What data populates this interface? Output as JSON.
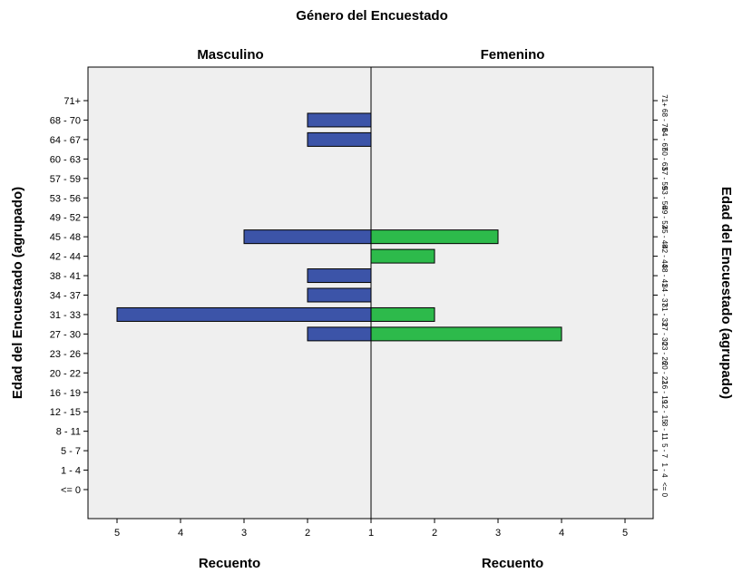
{
  "chart_data": {
    "type": "bar",
    "orientation": "horizontal-population-pyramid",
    "title": "Género del Encuestado",
    "panels": [
      "Masculino",
      "Femenino"
    ],
    "y_axis_label": "Edad del Encuestado (agrupado)",
    "x_axis_label": "Recuento",
    "categories": [
      "71+",
      "68 - 70",
      "64 - 67",
      "60 - 63",
      "57 - 59",
      "53 - 56",
      "49 - 52",
      "45 - 48",
      "42 - 44",
      "38 - 41",
      "34 - 37",
      "31 - 33",
      "27 - 30",
      "23 - 26",
      "20 - 22",
      "16 - 19",
      "12 - 15",
      "8 - 11",
      "5 - 7",
      "1 - 4",
      "<= 0"
    ],
    "series": [
      {
        "name": "Masculino",
        "color": "#3c54a8",
        "values": [
          0,
          2,
          2,
          0,
          0,
          0,
          0,
          3,
          0,
          2,
          2,
          5,
          2,
          0,
          0,
          0,
          0,
          0,
          0,
          0,
          0
        ]
      },
      {
        "name": "Femenino",
        "color": "#2dba4b",
        "values": [
          0,
          0,
          0,
          0,
          0,
          0,
          0,
          3,
          2,
          0,
          0,
          2,
          4,
          0,
          0,
          0,
          0,
          0,
          0,
          0,
          0
        ]
      }
    ],
    "x_ticks": [
      5,
      4,
      3,
      2,
      1,
      2,
      3,
      4,
      5
    ],
    "xlim": [
      1,
      5
    ],
    "background": "#efefef"
  }
}
